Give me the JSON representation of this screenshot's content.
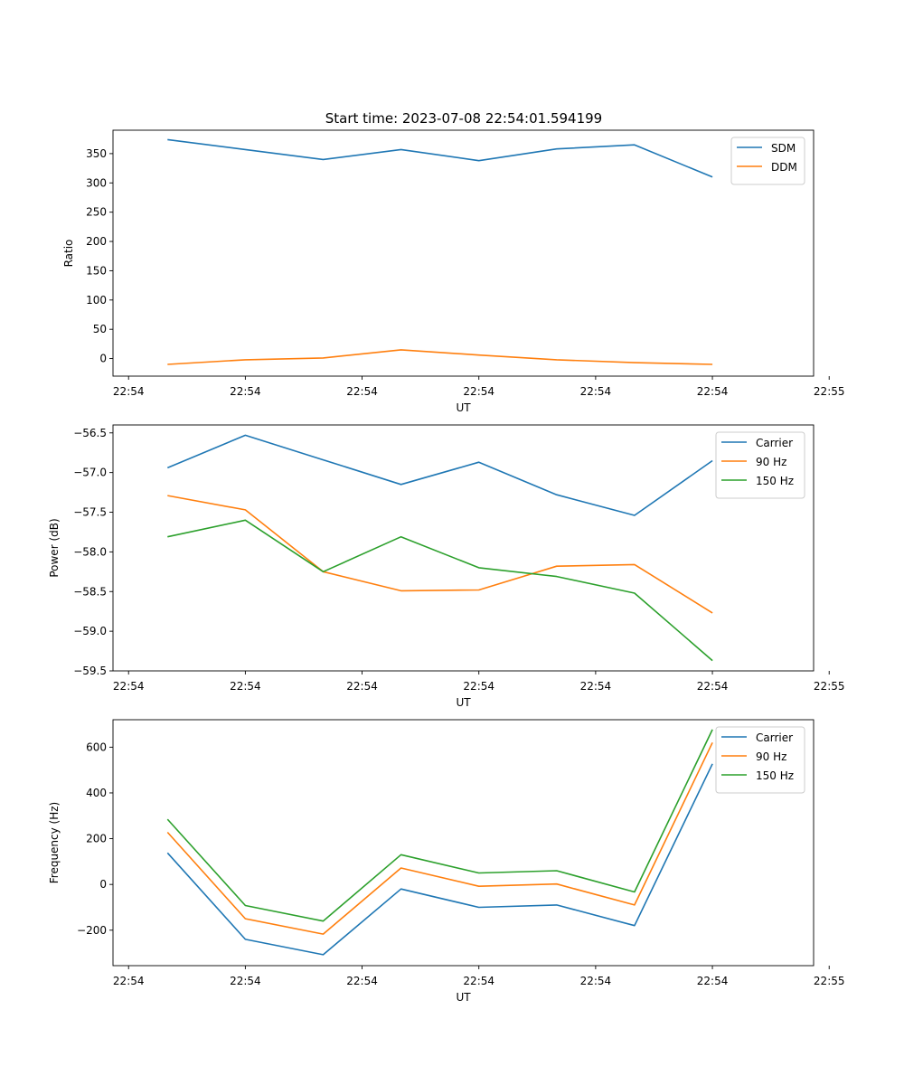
{
  "figure_title": "Start time: 2023-07-08 22:54:01.594199",
  "chart_data": [
    {
      "type": "line",
      "title": "Start time: 2023-07-08 22:54:01.594199",
      "xlabel": "UT",
      "ylabel": "Ratio",
      "x": [
        1,
        2,
        3,
        4,
        5,
        6,
        7,
        8
      ],
      "xlim": [
        0.3,
        9.3
      ],
      "xticks": [
        0.5,
        2.0,
        3.5,
        5.0,
        6.5,
        8.0,
        9.5
      ],
      "xtick_labels": [
        "22:54",
        "22:54",
        "22:54",
        "22:54",
        "22:54",
        "22:54",
        "22:55"
      ],
      "ylim": [
        -30,
        390
      ],
      "yticks": [
        0,
        50,
        100,
        150,
        200,
        250,
        300,
        350
      ],
      "ytick_labels": [
        "0",
        "50",
        "100",
        "150",
        "200",
        "250",
        "300",
        "350"
      ],
      "legend": "top-right",
      "series": [
        {
          "name": "SDM",
          "color": "#1f77b4",
          "values": [
            374,
            357,
            340,
            357,
            338,
            358,
            365,
            310
          ]
        },
        {
          "name": "DDM",
          "color": "#ff7f0e",
          "values": [
            -10,
            -2,
            1,
            15,
            6,
            -2,
            -7,
            -10
          ]
        }
      ]
    },
    {
      "type": "line",
      "xlabel": "UT",
      "ylabel": "Power (dB)",
      "x": [
        1,
        2,
        3,
        4,
        5,
        6,
        7,
        8
      ],
      "xlim": [
        0.3,
        9.3
      ],
      "xticks": [
        0.5,
        2.0,
        3.5,
        5.0,
        6.5,
        8.0,
        9.5
      ],
      "xtick_labels": [
        "22:54",
        "22:54",
        "22:54",
        "22:54",
        "22:54",
        "22:54",
        "22:55"
      ],
      "ylim": [
        -59.5,
        -56.4
      ],
      "yticks": [
        -59.5,
        -59.0,
        -58.5,
        -58.0,
        -57.5,
        -57.0,
        -56.5
      ],
      "ytick_labels": [
        "−59.5",
        "−59.0",
        "−58.5",
        "−58.0",
        "−57.5",
        "−57.0",
        "−56.5"
      ],
      "legend": "top-right",
      "series": [
        {
          "name": "Carrier",
          "color": "#1f77b4",
          "values": [
            -56.94,
            -56.53,
            -56.84,
            -57.15,
            -56.87,
            -57.28,
            -57.54,
            -56.85
          ]
        },
        {
          "name": "90 Hz",
          "color": "#ff7f0e",
          "values": [
            -57.29,
            -57.47,
            -58.25,
            -58.49,
            -58.48,
            -58.18,
            -58.16,
            -58.77
          ]
        },
        {
          "name": "150 Hz",
          "color": "#2ca02c",
          "values": [
            -57.81,
            -57.6,
            -58.25,
            -57.81,
            -58.2,
            -58.31,
            -58.52,
            -59.37
          ]
        }
      ]
    },
    {
      "type": "line",
      "xlabel": "UT",
      "ylabel": "Frequency (Hz)",
      "x": [
        1,
        2,
        3,
        4,
        5,
        6,
        7,
        8
      ],
      "xlim": [
        0.3,
        9.3
      ],
      "xticks": [
        0.5,
        2.0,
        3.5,
        5.0,
        6.5,
        8.0,
        9.5
      ],
      "xtick_labels": [
        "22:54",
        "22:54",
        "22:54",
        "22:54",
        "22:54",
        "22:54",
        "22:55"
      ],
      "ylim": [
        -355,
        720
      ],
      "yticks": [
        -200,
        0,
        200,
        400,
        600
      ],
      "ytick_labels": [
        "−200",
        "0",
        "200",
        "400",
        "600"
      ],
      "legend": "top-right",
      "series": [
        {
          "name": "Carrier",
          "color": "#1f77b4",
          "values": [
            138,
            -240,
            -307,
            -20,
            -100,
            -90,
            -180,
            527
          ]
        },
        {
          "name": "90 Hz",
          "color": "#ff7f0e",
          "values": [
            228,
            -150,
            -217,
            72,
            -8,
            2,
            -90,
            620
          ]
        },
        {
          "name": "150 Hz",
          "color": "#2ca02c",
          "values": [
            285,
            -92,
            -160,
            130,
            50,
            60,
            -33,
            677
          ]
        }
      ]
    }
  ]
}
